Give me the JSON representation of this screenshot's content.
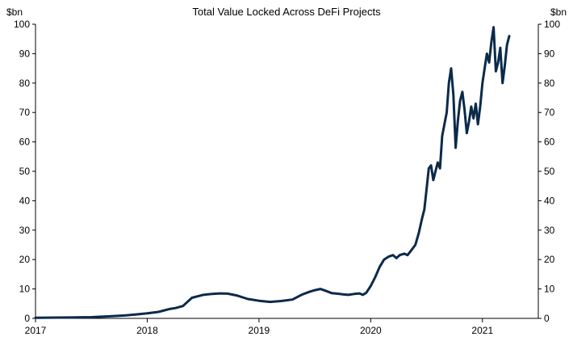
{
  "chart_data": {
    "type": "line",
    "title": "Total Value Locked Across DeFi Projects",
    "ylabel_left": "$bn",
    "ylabel_right": "$bn",
    "xlabel": "",
    "ylim": [
      0,
      100
    ],
    "yticks": [
      0,
      10,
      20,
      30,
      40,
      50,
      60,
      70,
      80,
      90,
      100
    ],
    "xlim": [
      2017.0,
      2021.5
    ],
    "xticks": [
      {
        "value": 2017,
        "label": "2017"
      },
      {
        "value": 2018,
        "label": "2018"
      },
      {
        "value": 2019,
        "label": "2019"
      },
      {
        "value": 2020,
        "label": "2020"
      },
      {
        "value": 2021,
        "label": "2021"
      }
    ],
    "grid": false,
    "colors": {
      "line": "#0b2a4a",
      "axis": "#000000"
    },
    "series": [
      {
        "name": "Total Value Locked",
        "x": [
          2017.0,
          2017.3,
          2017.5,
          2017.65,
          2017.8,
          2017.92,
          2018.0,
          2018.1,
          2018.2,
          2018.25,
          2018.32,
          2018.4,
          2018.5,
          2018.58,
          2018.65,
          2018.72,
          2018.8,
          2018.9,
          2019.0,
          2019.1,
          2019.2,
          2019.3,
          2019.38,
          2019.45,
          2019.5,
          2019.55,
          2019.6,
          2019.65,
          2019.7,
          2019.75,
          2019.8,
          2019.85,
          2019.9,
          2019.93,
          2019.96,
          2020.0,
          2020.04,
          2020.08,
          2020.12,
          2020.16,
          2020.2,
          2020.23,
          2020.26,
          2020.3,
          2020.33,
          2020.36,
          2020.4,
          2020.43,
          2020.46,
          2020.48,
          2020.5,
          2020.52,
          2020.54,
          2020.56,
          2020.58,
          2020.6,
          2020.62,
          2020.64,
          2020.66,
          2020.68,
          2020.7,
          2020.72,
          2020.74,
          2020.76,
          2020.78,
          2020.8,
          2020.82,
          2020.84,
          2020.86,
          2020.88,
          2020.9,
          2020.92,
          2020.94,
          2020.96,
          2020.98,
          2021.0,
          2021.02,
          2021.04,
          2021.06,
          2021.08,
          2021.1,
          2021.12,
          2021.14,
          2021.16,
          2021.18,
          2021.2,
          2021.22,
          2021.24
        ],
        "values": [
          0.2,
          0.3,
          0.4,
          0.7,
          1.0,
          1.4,
          1.7,
          2.2,
          3.2,
          3.5,
          4.2,
          7.0,
          8.0,
          8.3,
          8.5,
          8.4,
          7.8,
          6.6,
          6.0,
          5.6,
          5.9,
          6.4,
          8.0,
          9.0,
          9.6,
          10.0,
          9.3,
          8.6,
          8.4,
          8.2,
          8.0,
          8.3,
          8.5,
          8.0,
          8.7,
          11.0,
          14.0,
          17.5,
          20.0,
          21.0,
          21.5,
          20.5,
          21.5,
          22.0,
          21.5,
          23.0,
          25.0,
          29.0,
          34.0,
          37.0,
          44.0,
          51.0,
          52.0,
          47.0,
          50.0,
          53.0,
          51.0,
          62.0,
          66.0,
          70.0,
          80.0,
          85.0,
          76.0,
          58.0,
          67.0,
          74.0,
          77.0,
          71.0,
          63.0,
          67.0,
          72.0,
          68.0,
          73.0,
          66.0,
          72.0,
          80.0,
          85.0,
          90.0,
          87.0,
          94.0,
          99.0,
          84.0,
          87.0,
          92.0,
          80.0,
          86.0,
          93.0,
          96.0
        ]
      }
    ]
  }
}
